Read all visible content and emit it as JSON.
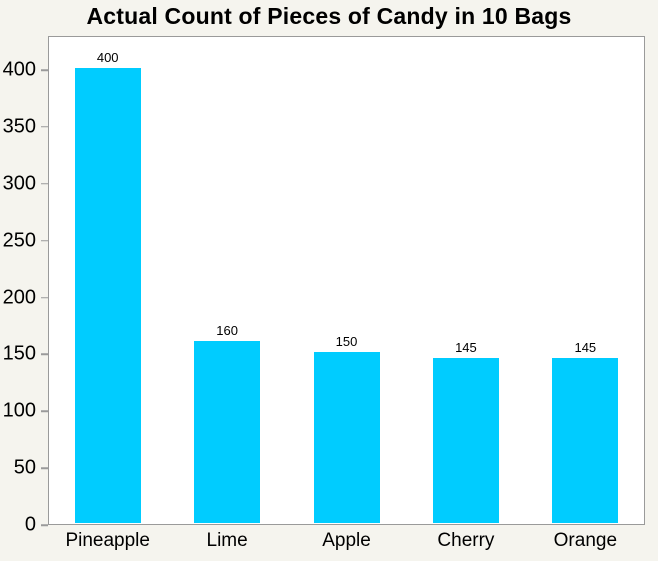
{
  "title": "Actual Count of Pieces of Candy in 10 Bags",
  "chart_data": {
    "type": "bar",
    "title": "Actual Count of Pieces of Candy in 10 Bags",
    "categories": [
      "Pineapple",
      "Lime",
      "Apple",
      "Cherry",
      "Orange"
    ],
    "values": [
      400,
      160,
      150,
      145,
      145
    ],
    "value_labels": [
      "400",
      "160",
      "150",
      "145",
      "145"
    ],
    "xlabel": "",
    "ylabel": "",
    "yticks": [
      0,
      50,
      100,
      150,
      200,
      250,
      300,
      350,
      400
    ],
    "ylim": [
      0,
      430
    ],
    "grid": false,
    "legend": false,
    "bar_color": "#00ccff",
    "plot_bg": "#ffffff",
    "page_bg": "#f5f4ee",
    "axis_border_color": "#9a9a9a",
    "text_color": "#000000"
  }
}
